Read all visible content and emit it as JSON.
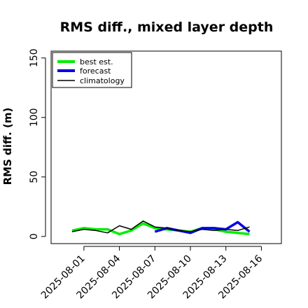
{
  "chart_data": {
    "type": "line",
    "title": "RMS diff., mixed layer depth",
    "ylabel": "RMS diff. (m)",
    "xlabel": "",
    "ylim": [
      0,
      160
    ],
    "yticks": [
      0,
      50,
      100,
      150
    ],
    "x": [
      "2025-07-31",
      "2025-08-01",
      "2025-08-02",
      "2025-08-03",
      "2025-08-04",
      "2025-08-05",
      "2025-08-06",
      "2025-08-07",
      "2025-08-08",
      "2025-08-09",
      "2025-08-10",
      "2025-08-11",
      "2025-08-12",
      "2025-08-13",
      "2025-08-14",
      "2025-08-15"
    ],
    "xticks": [
      {
        "label": "2025-08-01",
        "color": "#000000"
      },
      {
        "label": "2025-08-04",
        "color": "#000000"
      },
      {
        "label": "2025-08-07",
        "color": "#228b22"
      },
      {
        "label": "2025-08-10",
        "color": "#000000"
      },
      {
        "label": "2025-08-13",
        "color": "#000000"
      },
      {
        "label": "2025-08-16",
        "color": "#000000"
      }
    ],
    "series": [
      {
        "name": "best est.",
        "color": "#00ee00",
        "values": [
          5,
          7,
          6,
          6,
          2,
          5,
          11,
          7,
          6,
          5,
          4,
          7,
          6,
          4,
          3,
          2
        ]
      },
      {
        "name": "forecast",
        "color": "#0000ee",
        "values": [
          null,
          null,
          null,
          null,
          null,
          null,
          null,
          4,
          7,
          5,
          3,
          7,
          7,
          6,
          12,
          4
        ]
      },
      {
        "name": "climatology",
        "color": "#000000",
        "values": [
          4,
          6,
          5,
          3,
          9,
          6,
          13,
          8,
          7,
          5,
          4,
          6,
          5,
          6,
          5,
          8
        ]
      }
    ],
    "legend_position": "top-left",
    "grid": false
  }
}
